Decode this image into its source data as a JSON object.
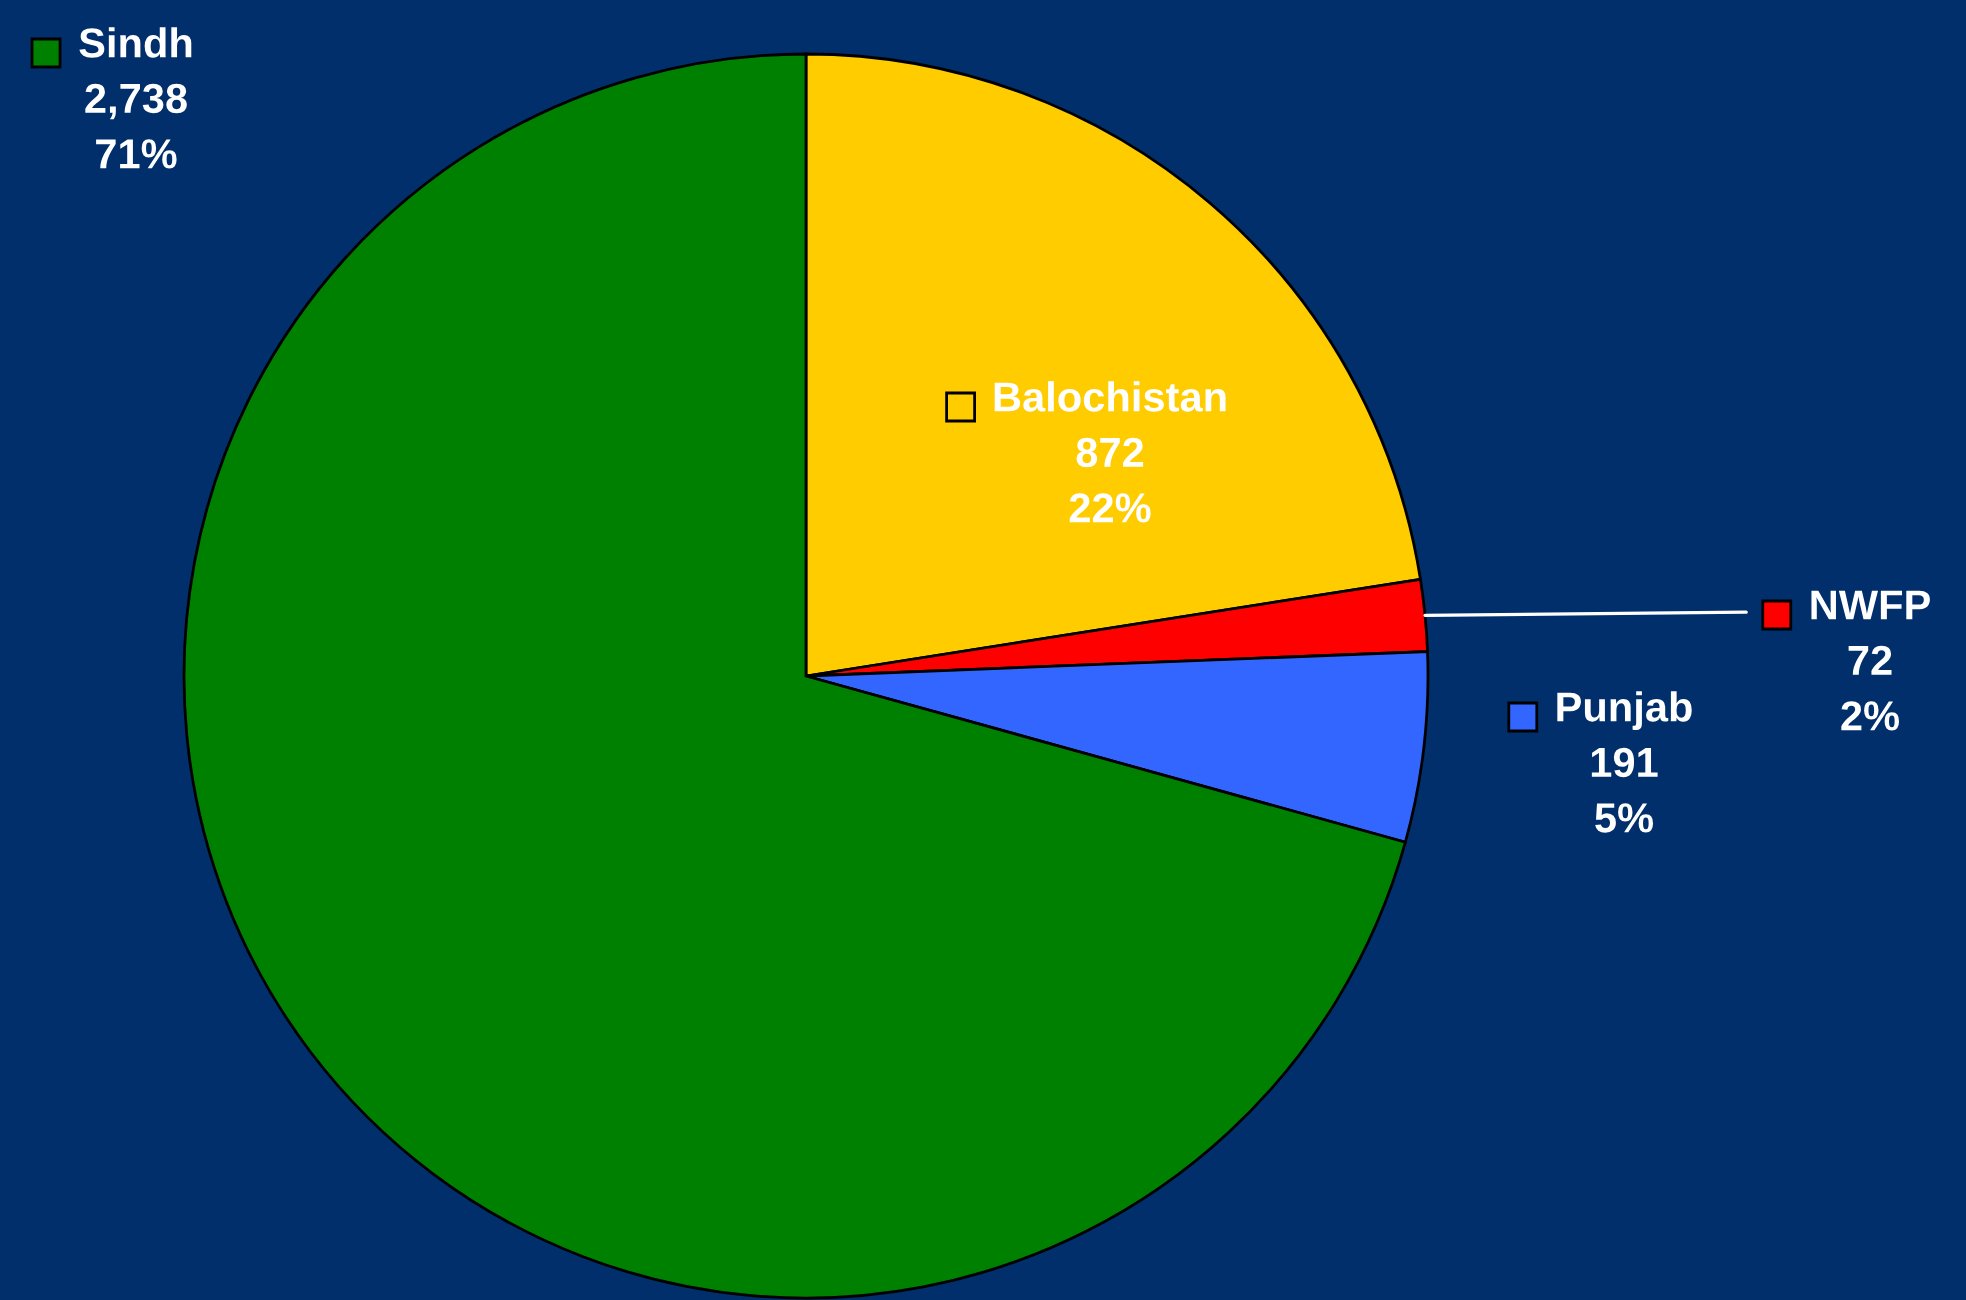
{
  "chart_data": {
    "type": "pie",
    "categories": [
      "Balochistan",
      "NWFP",
      "Punjab",
      "Sindh"
    ],
    "values": [
      872,
      72,
      191,
      2738
    ],
    "value_labels": [
      "872\n22%",
      "72\n2%",
      "191\n5%",
      "2,738\n71%"
    ],
    "colors": [
      "#ffcc00",
      "#ff0000",
      "#3366ff",
      "#008000"
    ],
    "legend": "top"
  }
}
